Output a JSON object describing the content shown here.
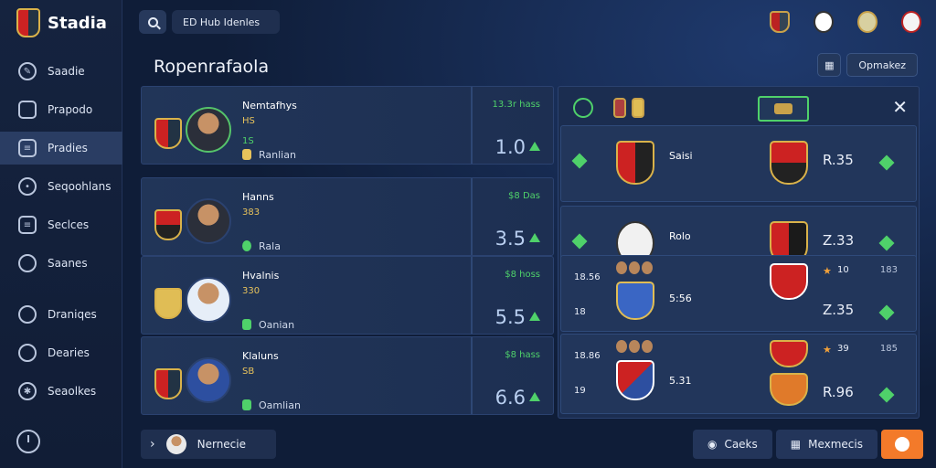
{
  "brand": {
    "name": "Stadia"
  },
  "search": {
    "value": "ED Hub Idenles"
  },
  "nav": {
    "items": [
      {
        "label": "Saadie"
      },
      {
        "label": "Prapodo"
      },
      {
        "label": "Pradies"
      },
      {
        "label": "Seqoohlans"
      },
      {
        "label": "Seclces"
      },
      {
        "label": "Saanes"
      },
      {
        "label": "Draniqes"
      },
      {
        "label": "Dearies"
      },
      {
        "label": "Seaolkes"
      }
    ]
  },
  "page": {
    "title": "Ropenrafaola",
    "action_label": "Opmakez"
  },
  "players": [
    {
      "name": "Nemtafhys",
      "meta": "HS",
      "rating": "1S",
      "club": "Ranlian",
      "odds_label": "13.3r hass",
      "odds": "1.0"
    },
    {
      "name": "Hanns",
      "meta": "383",
      "rating": "",
      "club": "Rala",
      "odds_label": "$8 Das",
      "odds": "3.5"
    },
    {
      "name": "Hvalnis",
      "meta": "330",
      "rating": "",
      "club": "Oanian",
      "odds_label": "$8 hoss",
      "odds": "5.5"
    },
    {
      "name": "Klaluns",
      "meta": "SB",
      "rating": "",
      "club": "Oamlian",
      "odds_label": "$8 hass",
      "odds": "6.6"
    }
  ],
  "matches": [
    {
      "label": "Saisi",
      "value": "R.35",
      "left_num": "",
      "left_sub": "",
      "right_top": "",
      "right_extra": ""
    },
    {
      "label": "Rolo",
      "value": "Z.33",
      "left_num": "",
      "left_sub": "",
      "right_top": "",
      "right_extra": ""
    },
    {
      "label": "5:56",
      "value": "Z.35",
      "left_num": "18.56",
      "left_sub": "18",
      "right_top": "10",
      "right_extra": "183"
    },
    {
      "label": "5.31",
      "value": "R.96",
      "left_num": "18.86",
      "left_sub": "19",
      "right_top": "39",
      "right_extra": "185"
    }
  ],
  "bottom": {
    "user_label": "Nernecie",
    "btn1": "Caeks",
    "btn2": "Mexmecis"
  },
  "colors": {
    "accent_green": "#4fd16a",
    "accent_orange": "#f37a2a",
    "gold": "#d9b24a"
  }
}
